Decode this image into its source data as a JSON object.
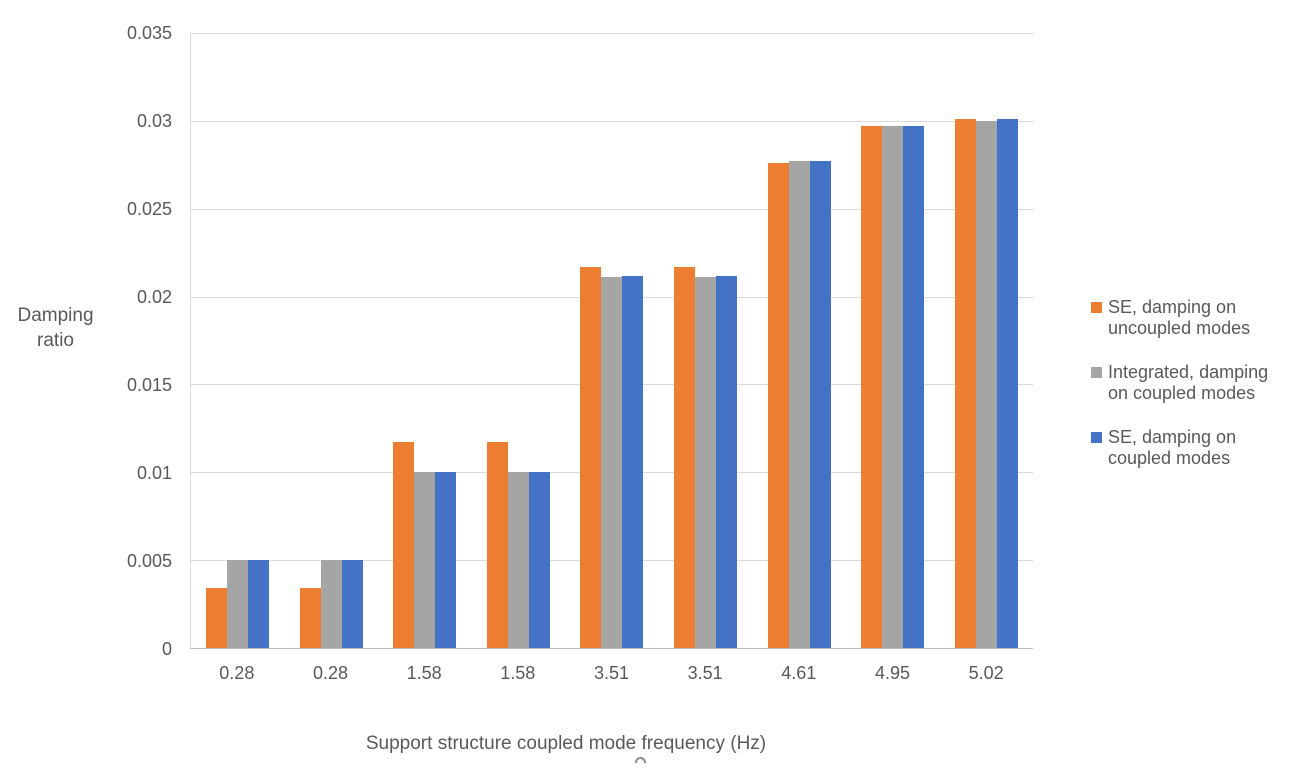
{
  "chart_data": {
    "type": "bar",
    "title": "",
    "xlabel": "Support structure coupled mode frequency (Hz)",
    "ylabel": "Damping ratio",
    "ylim": [
      0,
      0.035
    ],
    "ytick_values": [
      0,
      0.005,
      0.01,
      0.015,
      0.02,
      0.025,
      0.03,
      0.035
    ],
    "ytick_labels": [
      "0",
      "0.005",
      "0.01",
      "0.015",
      "0.02",
      "0.025",
      "0.03",
      "0.035"
    ],
    "categories": [
      "0.28",
      "0.28",
      "1.58",
      "1.58",
      "3.51",
      "3.51",
      "4.61",
      "4.95",
      "5.02"
    ],
    "grid": true,
    "legend_position": "right",
    "colors": {
      "axis_line": "#BFBFBF",
      "gridline": "#D9D9D9",
      "text": "#595959"
    },
    "series": [
      {
        "name": "SE, damping on uncoupled modes",
        "legend_lines": [
          "SE, damping on",
          "uncoupled modes"
        ],
        "color": "#ED7D31",
        "values": [
          0.0034,
          0.0034,
          0.0117,
          0.0117,
          0.0217,
          0.0217,
          0.0276,
          0.0297,
          0.0301
        ]
      },
      {
        "name": "Integrated, damping on coupled modes",
        "legend_lines": [
          "Integrated, damping",
          "on coupled modes"
        ],
        "color": "#A5A5A5",
        "values": [
          0.005,
          0.005,
          0.01,
          0.01,
          0.0211,
          0.0211,
          0.0277,
          0.0297,
          0.03
        ]
      },
      {
        "name": "SE, damping on coupled modes",
        "legend_lines": [
          "SE, damping on",
          "coupled modes"
        ],
        "color": "#4472C4",
        "values": [
          0.005,
          0.005,
          0.01,
          0.01,
          0.0212,
          0.0212,
          0.0277,
          0.0297,
          0.0301
        ]
      }
    ]
  }
}
